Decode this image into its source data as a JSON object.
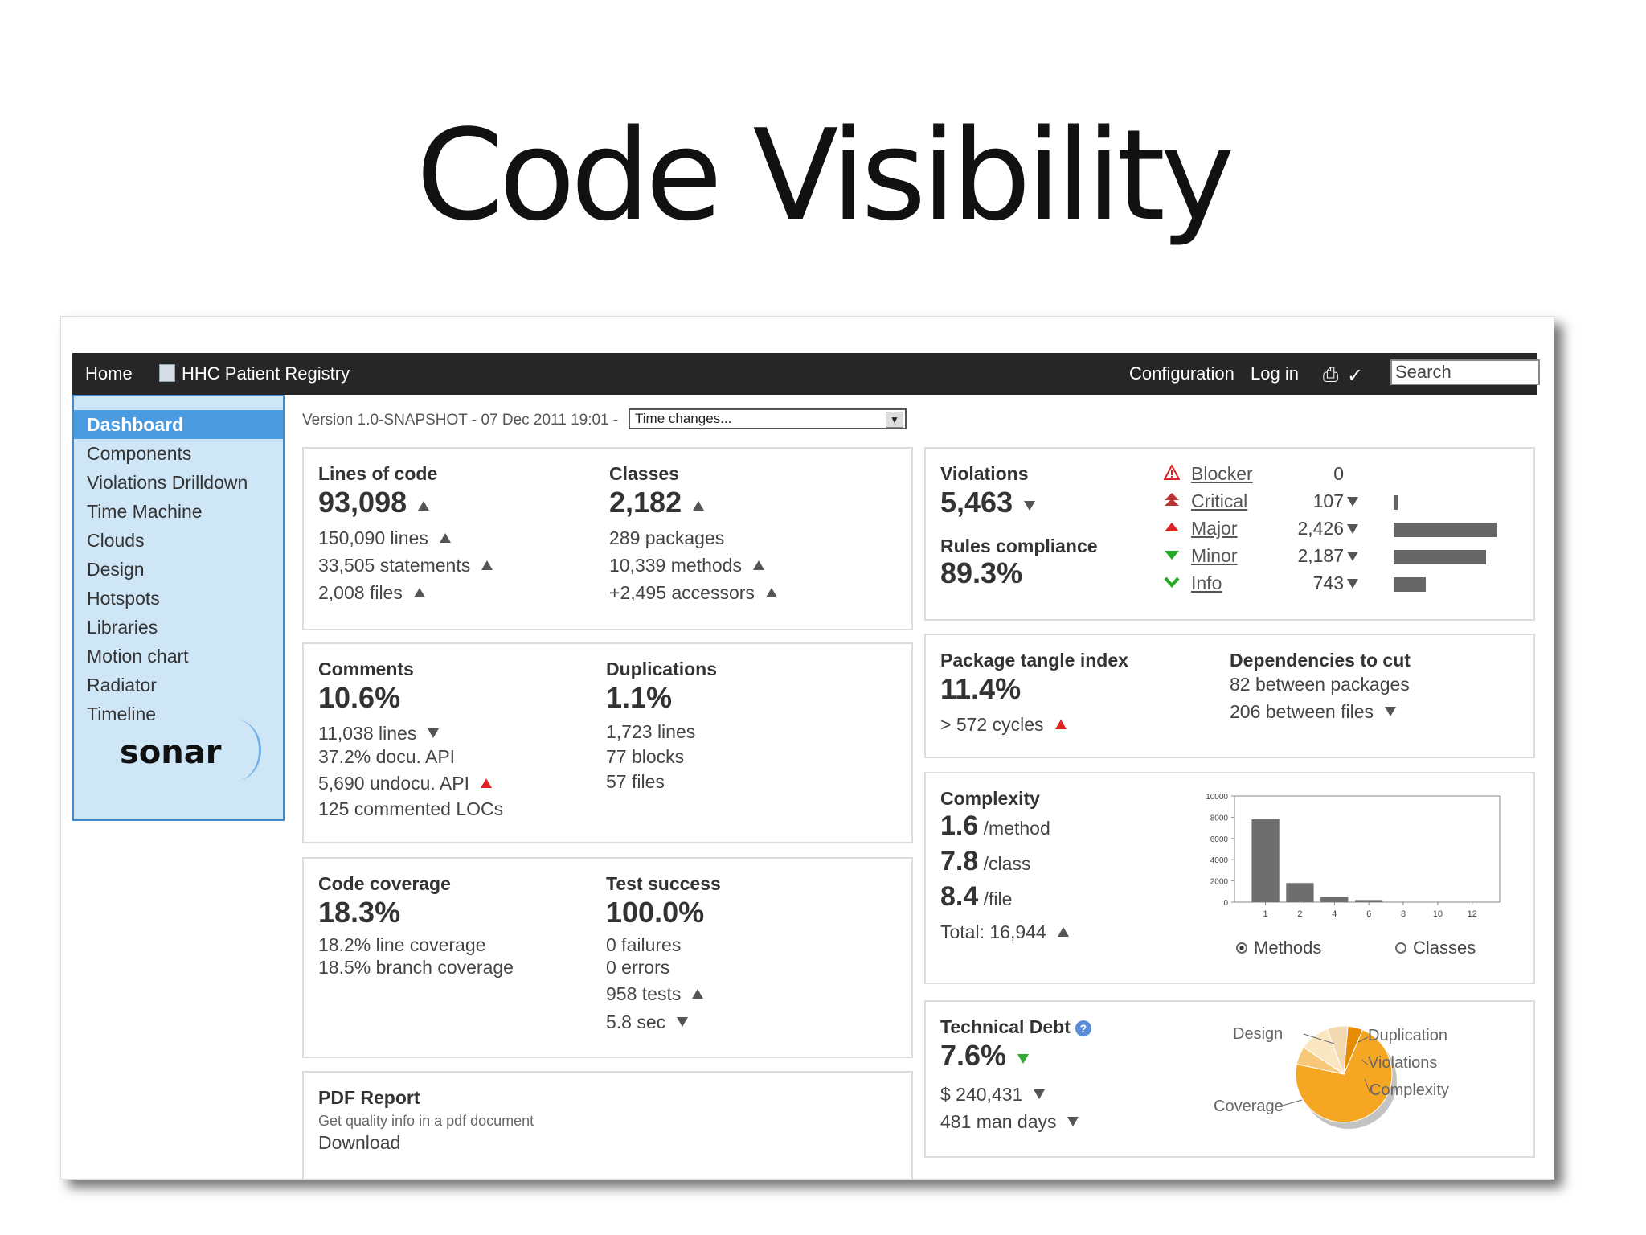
{
  "slide": {
    "title": "Code Visibility"
  },
  "topbar": {
    "home": "Home",
    "project": "HHC Patient Registry",
    "configuration": "Configuration",
    "login": "Log in",
    "search_value": "Search"
  },
  "sidebar": {
    "items": [
      {
        "label": "Dashboard"
      },
      {
        "label": "Components"
      },
      {
        "label": "Violations Drilldown"
      },
      {
        "label": "Time Machine"
      },
      {
        "label": "Clouds"
      },
      {
        "label": "Design"
      },
      {
        "label": "Hotspots"
      },
      {
        "label": "Libraries"
      },
      {
        "label": "Motion chart"
      },
      {
        "label": "Radiator"
      },
      {
        "label": "Timeline"
      }
    ],
    "logo": "sonar"
  },
  "version": {
    "text": "Version 1.0-SNAPSHOT - 07 Dec 2011 19:01 -",
    "select_value": "Time changes..."
  },
  "size": {
    "loc_label": "Lines of code",
    "loc_value": "93,098",
    "lines": "150,090 lines",
    "statements": "33,505 statements",
    "files": "2,008 files",
    "classes_label": "Classes",
    "classes_value": "2,182",
    "packages": "289 packages",
    "methods": "10,339 methods",
    "accessors": "+2,495 accessors"
  },
  "comments": {
    "label": "Comments",
    "value": "10.6%",
    "lines": "11,038 lines",
    "docu_api": "37.2% docu. API",
    "undocu_api": "5,690 undocu. API",
    "commented_locs": "125 commented LOCs"
  },
  "duplications": {
    "label": "Duplications",
    "value": "1.1%",
    "lines": "1,723 lines",
    "blocks": "77 blocks",
    "files": "57 files"
  },
  "coverage": {
    "label": "Code coverage",
    "value": "18.3%",
    "line": "18.2% line coverage",
    "branch": "18.5% branch coverage"
  },
  "tests": {
    "label": "Test success",
    "value": "100.0%",
    "failures": "0 failures",
    "errors": "0 errors",
    "tests": "958 tests",
    "time": "5.8 sec"
  },
  "pdf": {
    "label": "PDF Report",
    "desc": "Get quality info in a pdf document",
    "download": "Download"
  },
  "violations": {
    "label": "Violations",
    "value": "5,463",
    "compliance_label": "Rules compliance",
    "compliance_value": "89.3%",
    "severities": [
      {
        "name": "Blocker",
        "count": "0",
        "level": 0,
        "color": "#d22"
      },
      {
        "name": "Critical",
        "count": "107",
        "level": 0.04,
        "color": "#b33"
      },
      {
        "name": "Major",
        "count": "2,426",
        "level": 1.0,
        "color": "#d22"
      },
      {
        "name": "Minor",
        "count": "2,187",
        "level": 0.9,
        "color": "#2a2"
      },
      {
        "name": "Info",
        "count": "743",
        "level": 0.31,
        "color": "#2a2"
      }
    ]
  },
  "tangle": {
    "label": "Package tangle index",
    "value": "11.4%",
    "cycles": "> 572 cycles",
    "deps_label": "Dependencies to cut",
    "between_packages": "82 between packages",
    "between_files": "206 between files"
  },
  "complexity": {
    "label": "Complexity",
    "per_method": "1.6",
    "per_method_unit": "/method",
    "per_class": "7.8",
    "per_class_unit": "/class",
    "per_file": "8.4",
    "per_file_unit": "/file",
    "total": "Total: 16,944",
    "radio_methods": "Methods",
    "radio_classes": "Classes"
  },
  "debt": {
    "label": "Technical Debt",
    "value": "7.6%",
    "cost": "$ 240,431",
    "days": "481 man days",
    "pie_labels": {
      "design": "Design",
      "duplication": "Duplication",
      "violations": "Violations",
      "complexity": "Complexity",
      "coverage": "Coverage"
    }
  },
  "chart_data": [
    {
      "type": "bar",
      "categories": [
        "1",
        "2",
        "4",
        "6",
        "8",
        "10",
        "12"
      ],
      "values": [
        7800,
        1800,
        500,
        200,
        0,
        0,
        0
      ],
      "ylim": [
        0,
        10000
      ],
      "yticks": [
        "0",
        "2000",
        "4000",
        "6000",
        "8000",
        "10000"
      ],
      "grid": false
    },
    {
      "type": "pie",
      "labels": [
        "Coverage",
        "Design",
        "Duplication",
        "Violations",
        "Complexity"
      ],
      "values": [
        72,
        6,
        10,
        7,
        5
      ],
      "colors": [
        "#f5a623",
        "#f7c878",
        "#fbe6c2",
        "#f3d9b0",
        "#e68a00"
      ]
    }
  ]
}
